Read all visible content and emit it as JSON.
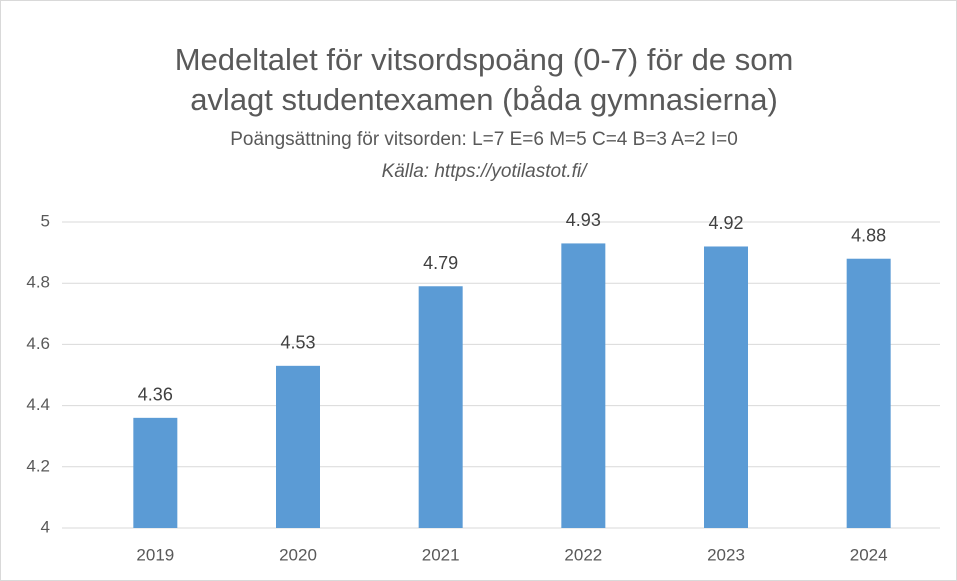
{
  "chart_data": {
    "type": "bar",
    "title": [
      "Medeltalet för vitsordspoäng (0-7) för de som",
      "avlagt studentexamen (båda gymnasierna)"
    ],
    "subtitle": "Poängsättning för vitsorden: L=7 E=6 M=5 C=4 B=3 A=2 I=0",
    "source": "Källa: https://yotilastot.fi/",
    "categories": [
      "2019",
      "2020",
      "2021",
      "2022",
      "2023",
      "2024"
    ],
    "values": [
      4.36,
      4.53,
      4.79,
      4.93,
      4.92,
      4.88
    ],
    "color": "#5b9bd5",
    "ylim": [
      4,
      5
    ],
    "yticks": [
      4,
      4.2,
      4.4,
      4.6,
      4.8,
      5
    ],
    "grid": true
  }
}
